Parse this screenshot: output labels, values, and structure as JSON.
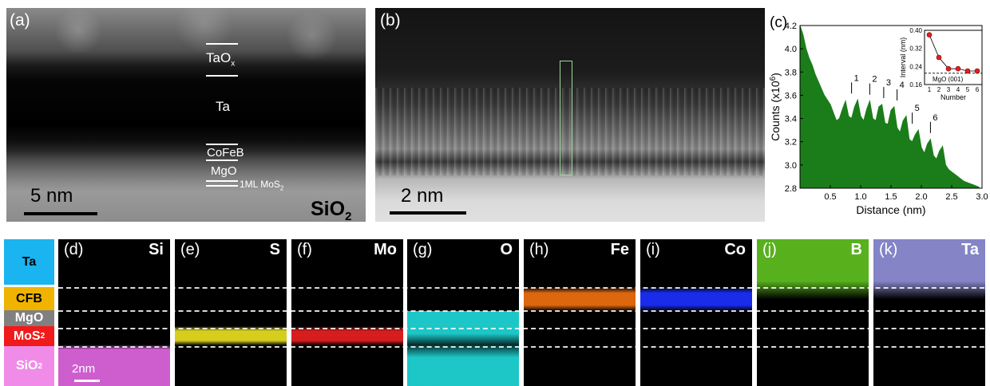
{
  "panel_a": {
    "label": "(a)",
    "layers": [
      "TaO",
      "x",
      "Ta",
      "CoFeB",
      "MgO",
      "1ML MoS",
      "2"
    ],
    "scale": "5 nm",
    "substrate": "SiO",
    "substrate_sub": "2"
  },
  "panel_b": {
    "label": "(b)",
    "scale": "2 nm"
  },
  "panel_c": {
    "label": "(c)",
    "peak_labels": [
      "1",
      "2",
      "3",
      "4",
      "5",
      "6"
    ],
    "inset": {
      "ylabel": "Interval (nm)",
      "xlabel": "Number",
      "ref_label": "MgO (001)",
      "ref_value": 0.21
    }
  },
  "chart_data": {
    "type": "area",
    "title": "",
    "xlabel": "Distance (nm)",
    "ylabel": "Counts (x10",
    "ylabel_sup": "6",
    "ylabel_end": ")",
    "xlim": [
      0,
      3.0
    ],
    "ylim": [
      2.8,
      4.2
    ],
    "xticks": [
      "0.5",
      "1.0",
      "1.5",
      "2.0",
      "2.5",
      "3.0"
    ],
    "yticks": [
      "2.8",
      "3.0",
      "3.2",
      "3.4",
      "3.6",
      "3.8",
      "4.0",
      "4.2"
    ],
    "color": "#1a7d1a",
    "x": [
      0.0,
      0.05,
      0.1,
      0.15,
      0.2,
      0.25,
      0.3,
      0.35,
      0.4,
      0.45,
      0.5,
      0.55,
      0.6,
      0.65,
      0.7,
      0.75,
      0.8,
      0.85,
      0.9,
      0.95,
      1.0,
      1.05,
      1.1,
      1.15,
      1.2,
      1.25,
      1.3,
      1.35,
      1.4,
      1.45,
      1.5,
      1.55,
      1.6,
      1.65,
      1.7,
      1.75,
      1.8,
      1.85,
      1.9,
      1.95,
      2.0,
      2.05,
      2.1,
      2.15,
      2.2,
      2.25,
      2.3,
      2.35,
      2.4,
      2.45,
      2.5,
      2.55,
      2.6,
      2.65,
      2.7,
      2.75,
      2.8,
      2.85,
      2.9,
      2.95
    ],
    "y": [
      4.2,
      4.12,
      4.0,
      3.92,
      3.86,
      3.78,
      3.72,
      3.66,
      3.6,
      3.56,
      3.52,
      3.45,
      3.38,
      3.4,
      3.48,
      3.55,
      3.42,
      3.4,
      3.5,
      3.56,
      3.42,
      3.38,
      3.48,
      3.55,
      3.4,
      3.38,
      3.5,
      3.52,
      3.36,
      3.35,
      3.47,
      3.5,
      3.32,
      3.28,
      3.38,
      3.42,
      3.22,
      3.2,
      3.26,
      3.3,
      3.15,
      3.1,
      3.18,
      3.22,
      3.08,
      3.05,
      3.12,
      3.16,
      3.0,
      2.96,
      2.94,
      2.92,
      2.9,
      2.88,
      2.86,
      2.85,
      2.84,
      2.83,
      2.82,
      2.81
    ],
    "peaks": [
      {
        "label": "1",
        "x": 0.85,
        "y": 3.56
      },
      {
        "label": "2",
        "x": 1.15,
        "y": 3.55
      },
      {
        "label": "3",
        "x": 1.38,
        "y": 3.52
      },
      {
        "label": "4",
        "x": 1.6,
        "y": 3.5
      },
      {
        "label": "5",
        "x": 1.85,
        "y": 3.3
      },
      {
        "label": "6",
        "x": 2.15,
        "y": 3.22
      }
    ],
    "inset": {
      "type": "scatter",
      "x": [
        1,
        2,
        3,
        4,
        5,
        6
      ],
      "y": [
        0.38,
        0.28,
        0.23,
        0.23,
        0.22,
        0.22
      ],
      "xlim": [
        0.5,
        6.5
      ],
      "ylim": [
        0.16,
        0.4
      ],
      "xticks": [
        "1",
        "2",
        "3",
        "4",
        "5",
        "6"
      ],
      "yticks": [
        "0.16",
        "0.24",
        "0.32",
        "0.40"
      ],
      "color": "#e02020"
    }
  },
  "maps": [
    {
      "id": "d",
      "label": "(d)",
      "element": "Si",
      "color": "#e066e0",
      "band": "sio2"
    },
    {
      "id": "e",
      "label": "(e)",
      "element": "S",
      "color": "#e8e020",
      "band": "mos2"
    },
    {
      "id": "f",
      "label": "(f)",
      "element": "Mo",
      "color": "#e82020",
      "band": "mos2"
    },
    {
      "id": "g",
      "label": "(g)",
      "element": "O",
      "color": "#20d8d8",
      "band": "o"
    },
    {
      "id": "h",
      "label": "(h)",
      "element": "Fe",
      "color": "#f07010",
      "band": "cfb"
    },
    {
      "id": "i",
      "label": "(i)",
      "element": "Co",
      "color": "#1a30ff",
      "band": "cfb"
    },
    {
      "id": "j",
      "label": "(j)",
      "element": "B",
      "color": "#60c020",
      "band": "ta"
    },
    {
      "id": "k",
      "label": "(k)",
      "element": "Ta",
      "color": "#9090d8",
      "band": "ta"
    }
  ],
  "map_scale": "2nm",
  "legend": [
    {
      "name": "Ta",
      "sub": "",
      "bg": "#1ab4f0",
      "color": "#000000"
    },
    {
      "name": "CFB",
      "sub": "",
      "bg": "#f0b400",
      "color": "#000000"
    },
    {
      "name": "MgO",
      "sub": "",
      "bg": "#808080",
      "color": "#ffffff"
    },
    {
      "name": "MoS",
      "sub": "2",
      "bg": "#f01a1a",
      "color": "#ffffff"
    },
    {
      "name": "SiO",
      "sub": "2",
      "bg": "#f08ce8",
      "color": "#ffffff"
    }
  ]
}
